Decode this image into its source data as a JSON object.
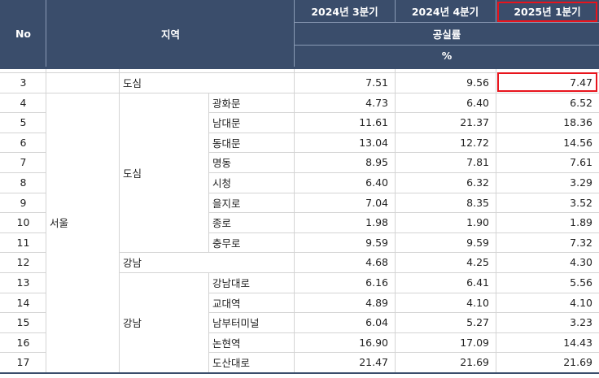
{
  "header": {
    "no_label": "No",
    "region_label": "지역",
    "periods": [
      "2024년 3분기",
      "2024년 4분기",
      "2025년 1분기"
    ],
    "metric_label": "공실률",
    "unit_label": "%"
  },
  "highlight_color": "#e8141c",
  "header_color": "#3a4d6b",
  "rows": [
    {
      "no": "3",
      "level1": "",
      "level2": "도심",
      "level3": "",
      "values": [
        "7.51",
        "9.56",
        "7.47"
      ]
    },
    {
      "no": "4",
      "level1": "",
      "level2": "",
      "level3": "광화문",
      "values": [
        "4.73",
        "6.40",
        "6.52"
      ]
    },
    {
      "no": "5",
      "level1": "",
      "level2": "",
      "level3": "남대문",
      "values": [
        "11.61",
        "21.37",
        "18.36"
      ]
    },
    {
      "no": "6",
      "level1": "",
      "level2": "",
      "level3": "동대문",
      "values": [
        "13.04",
        "12.72",
        "14.56"
      ]
    },
    {
      "no": "7",
      "level1": "",
      "level2": "",
      "level3": "명동",
      "values": [
        "8.95",
        "7.81",
        "7.61"
      ]
    },
    {
      "no": "8",
      "level1": "",
      "level2": "도심",
      "level3": "시청",
      "values": [
        "6.40",
        "6.32",
        "3.29"
      ]
    },
    {
      "no": "9",
      "level1": "",
      "level2": "",
      "level3": "을지로",
      "values": [
        "7.04",
        "8.35",
        "3.52"
      ]
    },
    {
      "no": "10",
      "level1": "서울",
      "level2": "",
      "level3": "종로",
      "values": [
        "1.98",
        "1.90",
        "1.89"
      ]
    },
    {
      "no": "11",
      "level1": "",
      "level2": "",
      "level3": "충무로",
      "values": [
        "9.59",
        "9.59",
        "7.32"
      ]
    },
    {
      "no": "12",
      "level1": "",
      "level2": "강남",
      "level3": "",
      "values": [
        "4.68",
        "4.25",
        "4.30"
      ]
    },
    {
      "no": "13",
      "level1": "",
      "level2": "",
      "level3": "강남대로",
      "values": [
        "6.16",
        "6.41",
        "5.56"
      ]
    },
    {
      "no": "14",
      "level1": "",
      "level2": "",
      "level3": "교대역",
      "values": [
        "4.89",
        "4.10",
        "4.10"
      ]
    },
    {
      "no": "15",
      "level1": "",
      "level2": "강남",
      "level3": "남부터미널",
      "values": [
        "6.04",
        "5.27",
        "3.23"
      ]
    },
    {
      "no": "16",
      "level1": "",
      "level2": "",
      "level3": "논현역",
      "values": [
        "16.90",
        "17.09",
        "14.43"
      ]
    },
    {
      "no": "17",
      "level1": "",
      "level2": "",
      "level3": "도산대로",
      "values": [
        "21.47",
        "21.69",
        "21.69"
      ]
    }
  ]
}
